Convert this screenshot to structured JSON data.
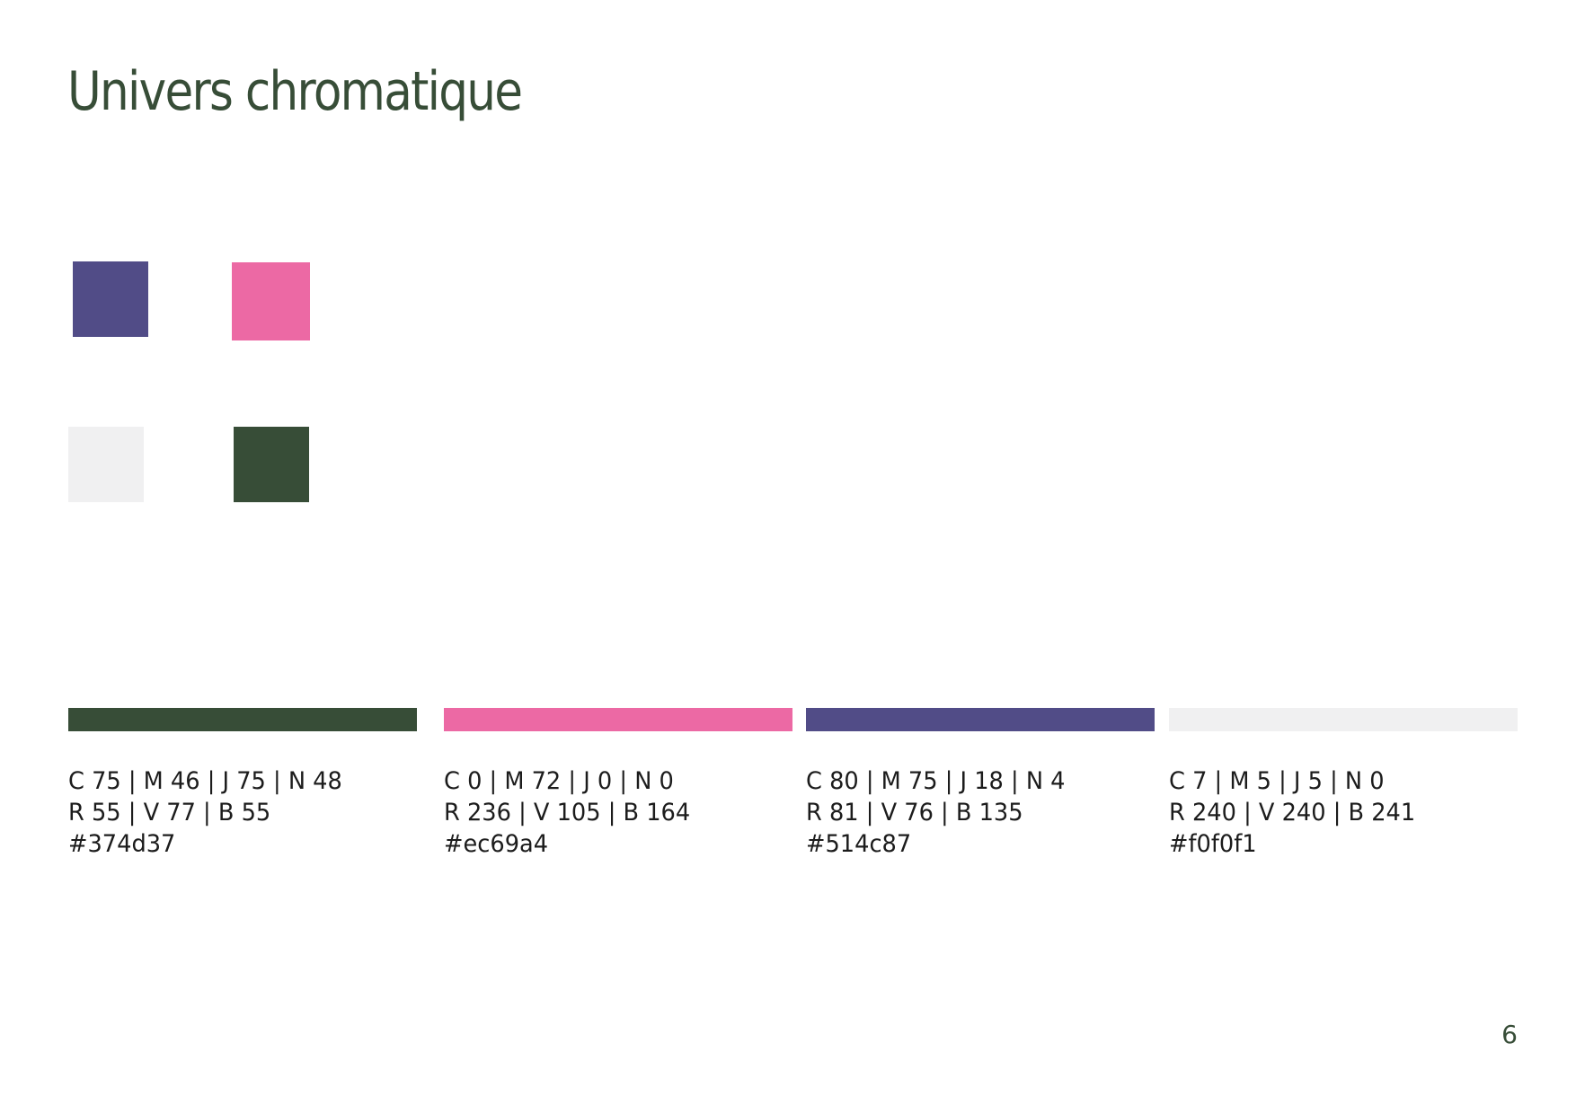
{
  "page": {
    "title": "Univers chromatique",
    "page_number": "6",
    "title_color": "#374d37"
  },
  "squares": [
    {
      "name": "purple",
      "color": "#514c87"
    },
    {
      "name": "pink",
      "color": "#ec69a4"
    },
    {
      "name": "light-grey",
      "color": "#f0f0f1"
    },
    {
      "name": "dark-green",
      "color": "#374d37"
    }
  ],
  "swatches": [
    {
      "color": "#374d37",
      "cmyk": "C 75 | M 46 | J 75 | N 48",
      "rgb": "R 55 | V 77 | B 55",
      "hex": "#374d37"
    },
    {
      "color": "#ec69a4",
      "cmyk": "C 0 | M 72 | J 0 | N 0",
      "rgb": "R 236 | V 105 | B 164",
      "hex": "#ec69a4"
    },
    {
      "color": "#514c87",
      "cmyk": "C 80 | M 75 | J 18 | N 4",
      "rgb": "R 81 | V 76 | B 135",
      "hex": "#514c87"
    },
    {
      "color": "#f0f0f1",
      "cmyk": "C 7 | M 5 | J 5 | N 0",
      "rgb": "R 240 | V 240 | B 241",
      "hex": "#f0f0f1"
    }
  ]
}
